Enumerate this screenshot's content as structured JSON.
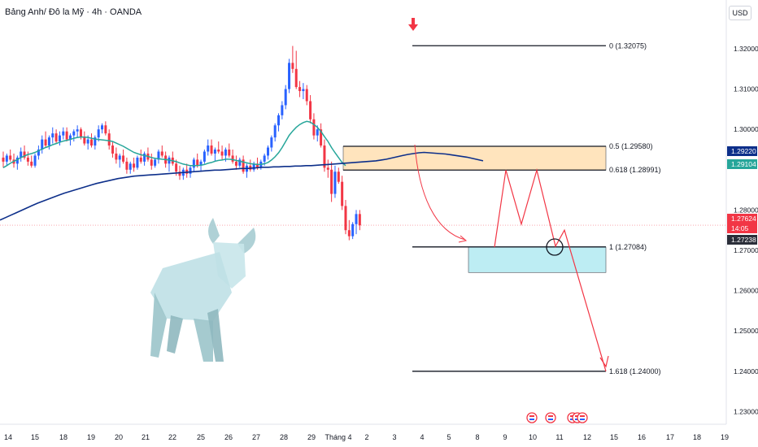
{
  "header": {
    "symbol_title": "Bảng Anh/ Đô la Mỹ · 4h · OANDA",
    "currency_button": "USD"
  },
  "colors": {
    "bull": "#2962ff",
    "bear": "#f23645",
    "ema_fast": "#26a69a",
    "ema_slow": "#0d2f8a",
    "zone_orange": "#ffe0b2",
    "zone_cyan": "#b2ebf2",
    "projection": "#f23645"
  },
  "icons": [
    "sell-arrow-icon",
    "bull-illustration",
    "us-flag-event-icon"
  ],
  "chart_data": {
    "type": "candlestick",
    "timeframe": "4h",
    "y_axis": {
      "ticks": [
        "1.32000",
        "1.31000",
        "1.30000",
        "1.28000",
        "1.27000",
        "1.26000",
        "1.25000",
        "1.24000",
        "1.23000"
      ],
      "tick_values": [
        1.32,
        1.31,
        1.3,
        1.28,
        1.27,
        1.26,
        1.25,
        1.24,
        1.23
      ],
      "range": [
        1.2275,
        1.3275
      ]
    },
    "x_axis": {
      "ticks": [
        "14",
        "15",
        "18",
        "19",
        "20",
        "21",
        "22",
        "25",
        "26",
        "27",
        "28",
        "29",
        "Tháng 4",
        "2",
        "3",
        "4",
        "5",
        "8",
        "9",
        "10",
        "11",
        "12",
        "15",
        "16",
        "17",
        "18",
        "19"
      ]
    },
    "price_labels": [
      {
        "text": "1.29220",
        "value": 1.2922,
        "color": "#0d2f8a"
      },
      {
        "text": "1.29104",
        "value": 1.29104,
        "color": "#26a69a"
      },
      {
        "text": "1.27624",
        "value": 1.27624,
        "color": "#f23645"
      },
      {
        "text": "14:05",
        "value": 1.27624,
        "color": "#f23645"
      },
      {
        "text": "1.27238",
        "value": 1.27238,
        "color": "#2a2e39"
      }
    ],
    "fib_levels": [
      {
        "label": "0 (1.32075)",
        "value": 1.32075
      },
      {
        "label": "0.5 (1.29580)",
        "value": 1.2958
      },
      {
        "label": "0.618 (1.28991)",
        "value": 1.28991
      },
      {
        "label": "1 (1.27084)",
        "value": 1.27084
      },
      {
        "label": "1.618 (1.24000)",
        "value": 1.24
      }
    ],
    "zones": [
      {
        "name": "supply",
        "from": 1.2899,
        "to": 1.2958,
        "color": "#ffe0b2"
      },
      {
        "name": "demand",
        "from": 1.2645,
        "to": 1.2708,
        "color": "#b2ebf2"
      }
    ],
    "candles_ohlc": [
      [
        1.293,
        1.2945,
        1.2905,
        1.292
      ],
      [
        1.292,
        1.294,
        1.291,
        1.2935
      ],
      [
        1.2935,
        1.295,
        1.292,
        1.2925
      ],
      [
        1.2925,
        1.294,
        1.2905,
        1.2915
      ],
      [
        1.2915,
        1.2935,
        1.29,
        1.293
      ],
      [
        1.293,
        1.2955,
        1.292,
        1.2945
      ],
      [
        1.2945,
        1.296,
        1.2925,
        1.293
      ],
      [
        1.293,
        1.2945,
        1.291,
        1.292
      ],
      [
        1.292,
        1.2935,
        1.2905,
        1.291
      ],
      [
        1.291,
        1.294,
        1.2905,
        1.2935
      ],
      [
        1.2935,
        1.296,
        1.2925,
        1.295
      ],
      [
        1.295,
        1.2985,
        1.294,
        1.2975
      ],
      [
        1.2975,
        1.2995,
        1.2955,
        1.296
      ],
      [
        1.296,
        1.2985,
        1.295,
        1.298
      ],
      [
        1.298,
        1.3005,
        1.2965,
        1.299
      ],
      [
        1.299,
        1.3,
        1.2965,
        1.297
      ],
      [
        1.297,
        1.2995,
        1.296,
        1.2985
      ],
      [
        1.2985,
        1.3005,
        1.2975,
        1.2995
      ],
      [
        1.2995,
        1.3005,
        1.297,
        1.2975
      ],
      [
        1.2975,
        1.299,
        1.296,
        1.2985
      ],
      [
        1.2985,
        1.3,
        1.297,
        1.2995
      ],
      [
        1.2995,
        1.301,
        1.298,
        1.3
      ],
      [
        1.3,
        1.3005,
        1.2975,
        1.298
      ],
      [
        1.298,
        1.2995,
        1.296,
        1.2965
      ],
      [
        1.2965,
        1.2985,
        1.295,
        1.2975
      ],
      [
        1.2975,
        1.299,
        1.2955,
        1.296
      ],
      [
        1.296,
        1.2985,
        1.295,
        1.298
      ],
      [
        1.298,
        1.301,
        1.297,
        1.3
      ],
      [
        1.3,
        1.3015,
        1.299,
        1.301
      ],
      [
        1.301,
        1.302,
        1.2985,
        1.299
      ],
      [
        1.299,
        1.3,
        1.295,
        1.296
      ],
      [
        1.296,
        1.297,
        1.293,
        1.294
      ],
      [
        1.294,
        1.2955,
        1.2915,
        1.2925
      ],
      [
        1.2925,
        1.294,
        1.2905,
        1.2935
      ],
      [
        1.2935,
        1.295,
        1.2915,
        1.292
      ],
      [
        1.292,
        1.293,
        1.289,
        1.29
      ],
      [
        1.29,
        1.292,
        1.289,
        1.2915
      ],
      [
        1.2915,
        1.293,
        1.2895,
        1.2905
      ],
      [
        1.2905,
        1.2935,
        1.29,
        1.293
      ],
      [
        1.293,
        1.295,
        1.2915,
        1.292
      ],
      [
        1.292,
        1.2945,
        1.291,
        1.294
      ],
      [
        1.294,
        1.2955,
        1.292,
        1.2925
      ],
      [
        1.2925,
        1.294,
        1.29,
        1.291
      ],
      [
        1.291,
        1.293,
        1.2905,
        1.2925
      ],
      [
        1.2925,
        1.295,
        1.2915,
        1.2945
      ],
      [
        1.2945,
        1.296,
        1.293,
        1.2935
      ],
      [
        1.2935,
        1.2945,
        1.2905,
        1.2915
      ],
      [
        1.2915,
        1.2935,
        1.2895,
        1.293
      ],
      [
        1.293,
        1.2945,
        1.291,
        1.2915
      ],
      [
        1.2915,
        1.2925,
        1.2885,
        1.2895
      ],
      [
        1.2895,
        1.291,
        1.2875,
        1.2885
      ],
      [
        1.2885,
        1.2905,
        1.2875,
        1.29
      ],
      [
        1.29,
        1.2915,
        1.288,
        1.289
      ],
      [
        1.289,
        1.291,
        1.288,
        1.2905
      ],
      [
        1.2905,
        1.293,
        1.2895,
        1.2925
      ],
      [
        1.2925,
        1.294,
        1.2905,
        1.291
      ],
      [
        1.291,
        1.2925,
        1.2895,
        1.292
      ],
      [
        1.292,
        1.295,
        1.2915,
        1.2945
      ],
      [
        1.2945,
        1.2975,
        1.2935,
        1.296
      ],
      [
        1.296,
        1.2975,
        1.2935,
        1.294
      ],
      [
        1.294,
        1.2955,
        1.292,
        1.295
      ],
      [
        1.295,
        1.297,
        1.294,
        1.2945
      ],
      [
        1.2945,
        1.296,
        1.2925,
        1.2935
      ],
      [
        1.2935,
        1.2955,
        1.292,
        1.295
      ],
      [
        1.295,
        1.2965,
        1.293,
        1.2935
      ],
      [
        1.2935,
        1.295,
        1.2915,
        1.292
      ],
      [
        1.292,
        1.2935,
        1.29,
        1.291
      ],
      [
        1.291,
        1.293,
        1.2905,
        1.2925
      ],
      [
        1.2925,
        1.2935,
        1.289,
        1.2895
      ],
      [
        1.2895,
        1.2915,
        1.288,
        1.291
      ],
      [
        1.291,
        1.2925,
        1.2895,
        1.29
      ],
      [
        1.29,
        1.292,
        1.2895,
        1.2915
      ],
      [
        1.2915,
        1.293,
        1.29,
        1.2905
      ],
      [
        1.2905,
        1.2925,
        1.29,
        1.292
      ],
      [
        1.292,
        1.294,
        1.291,
        1.2935
      ],
      [
        1.2935,
        1.296,
        1.2925,
        1.2955
      ],
      [
        1.2955,
        1.2985,
        1.2945,
        1.298
      ],
      [
        1.298,
        1.3015,
        1.297,
        1.301
      ],
      [
        1.301,
        1.304,
        1.2995,
        1.3035
      ],
      [
        1.3035,
        1.307,
        1.3025,
        1.306
      ],
      [
        1.306,
        1.311,
        1.305,
        1.31
      ],
      [
        1.31,
        1.3175,
        1.309,
        1.3165
      ],
      [
        1.3165,
        1.3207,
        1.314,
        1.315
      ],
      [
        1.315,
        1.3195,
        1.31,
        1.3105
      ],
      [
        1.3105,
        1.312,
        1.308,
        1.3095
      ],
      [
        1.3095,
        1.3115,
        1.3075,
        1.31
      ],
      [
        1.31,
        1.311,
        1.306,
        1.307
      ],
      [
        1.307,
        1.3085,
        1.3015,
        1.3025
      ],
      [
        1.3025,
        1.304,
        1.2975,
        1.2985
      ],
      [
        1.2985,
        1.301,
        1.297,
        1.3
      ],
      [
        1.3,
        1.3015,
        1.2955,
        1.296
      ],
      [
        1.296,
        1.2975,
        1.2895,
        1.2905
      ],
      [
        1.2905,
        1.2925,
        1.288,
        1.29
      ],
      [
        1.29,
        1.292,
        1.282,
        1.284
      ],
      [
        1.284,
        1.291,
        1.283,
        1.2895
      ],
      [
        1.2895,
        1.2905,
        1.2865,
        1.287
      ],
      [
        1.287,
        1.2885,
        1.28,
        1.281
      ],
      [
        1.281,
        1.2825,
        1.274,
        1.275
      ],
      [
        1.275,
        1.2775,
        1.2725,
        1.2735
      ],
      [
        1.2735,
        1.277,
        1.2728,
        1.2765
      ],
      [
        1.2765,
        1.28,
        1.274,
        1.279
      ],
      [
        1.279,
        1.28,
        1.275,
        1.2762
      ]
    ],
    "ema_fast_values": [
      1.2905,
      1.291,
      1.2916,
      1.2921,
      1.2925,
      1.293,
      1.2934,
      1.2938,
      1.294,
      1.2943,
      1.2947,
      1.2951,
      1.2955,
      1.2958,
      1.2962,
      1.2965,
      1.2968,
      1.2971,
      1.2973,
      1.2975,
      1.2978,
      1.298,
      1.2981,
      1.2981,
      1.298,
      1.2978,
      1.2976,
      1.2975,
      1.2974,
      1.2973,
      1.2972,
      1.297,
      1.2966,
      1.2962,
      1.2958,
      1.2953,
      1.2948,
      1.2943,
      1.294,
      1.2937,
      1.2935,
      1.2933,
      1.293,
      1.2928,
      1.2927,
      1.2926,
      1.2925,
      1.2924,
      1.2922,
      1.292,
      1.2917,
      1.2914,
      1.2912,
      1.291,
      1.291,
      1.291,
      1.2911,
      1.2913,
      1.2916,
      1.2918,
      1.2921,
      1.2923,
      1.2924,
      1.2926,
      1.2926,
      1.2925,
      1.2923,
      1.2921,
      1.2919,
      1.2917,
      1.2915,
      1.2914,
      1.2913,
      1.2913,
      1.2915,
      1.2918,
      1.2924,
      1.2932,
      1.2942,
      1.2955,
      1.297,
      1.2985,
      1.2996,
      1.3005,
      1.3012,
      1.3017,
      1.302,
      1.3018,
      1.3012,
      1.3005,
      1.2995,
      1.2982,
      1.297,
      1.2955,
      1.2942,
      1.293,
      1.2918,
      1.291
    ],
    "ema_slow_values": [
      1.2775,
      1.2781,
      1.2787,
      1.2793,
      1.2799,
      1.2805,
      1.2811,
      1.2817,
      1.2822,
      1.2827,
      1.2832,
      1.2837,
      1.2842,
      1.2846,
      1.285,
      1.2854,
      1.2858,
      1.2862,
      1.2866,
      1.2869,
      1.2872,
      1.2875,
      1.2878,
      1.288,
      1.2882,
      1.2884,
      1.2885,
      1.2886,
      1.2887,
      1.2888,
      1.2889,
      1.289,
      1.2891,
      1.2892,
      1.2893,
      1.2894,
      1.2895,
      1.2896,
      1.2897,
      1.2898,
      1.2899,
      1.2899,
      1.29,
      1.2901,
      1.2902,
      1.2903,
      1.2903,
      1.2904,
      1.2905,
      1.2906,
      1.2906,
      1.2907,
      1.2907,
      1.2908,
      1.2908,
      1.2909,
      1.2909,
      1.291,
      1.291,
      1.2911,
      1.2912,
      1.2913,
      1.2914,
      1.2915,
      1.2916,
      1.2917,
      1.2918,
      1.2919,
      1.292,
      1.2921,
      1.2922,
      1.2924,
      1.2926,
      1.2929,
      1.2932,
      1.2935,
      1.2938,
      1.294,
      1.2942,
      1.2943,
      1.2942,
      1.2941,
      1.294,
      1.2939,
      1.2937,
      1.2935,
      1.2933,
      1.2931,
      1.2928,
      1.2925,
      1.2922
    ],
    "projection_path": [
      1.2708,
      1.2899,
      1.2765,
      1.2899,
      1.271,
      1.275,
      1.24
    ],
    "circle_marker_value": 1.2708,
    "event_flags": [
      "us-flag",
      "us-flag",
      "us-flag",
      "us-flag",
      "us-flag"
    ]
  }
}
